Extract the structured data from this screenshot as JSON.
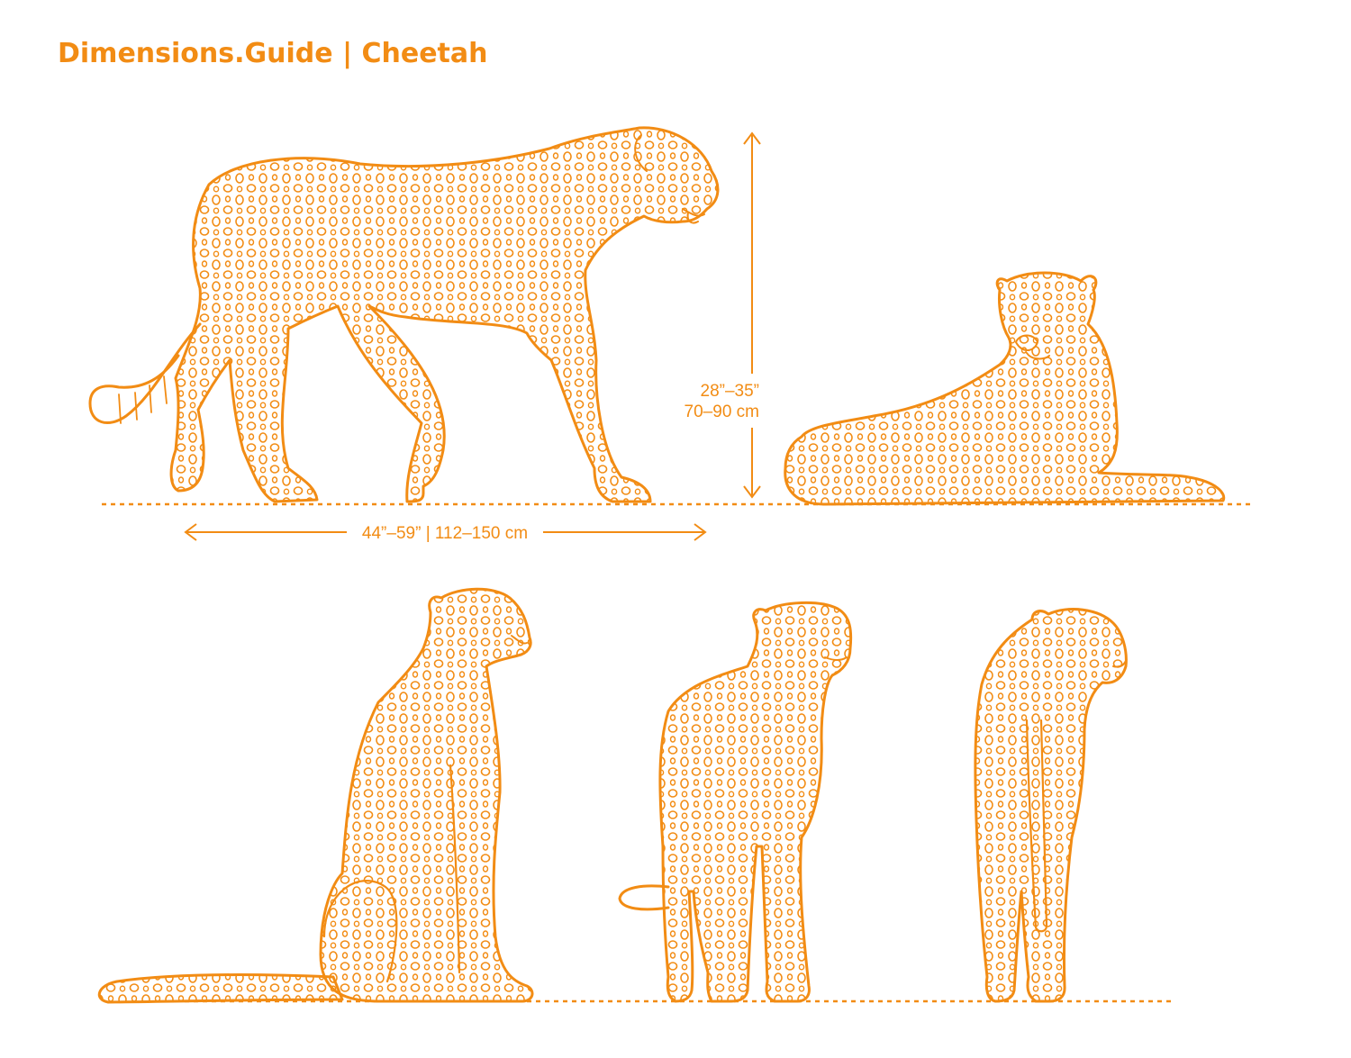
{
  "header": {
    "brand": "Dimensions.Guide",
    "separator": "|",
    "subject": "Cheetah"
  },
  "dimensions": {
    "height_in": "28”–35”",
    "height_cm": "70–90 cm",
    "length": "44”–59” | 112–150 cm"
  },
  "colors": {
    "accent": "#F28C14",
    "background": "#FFFFFF"
  }
}
